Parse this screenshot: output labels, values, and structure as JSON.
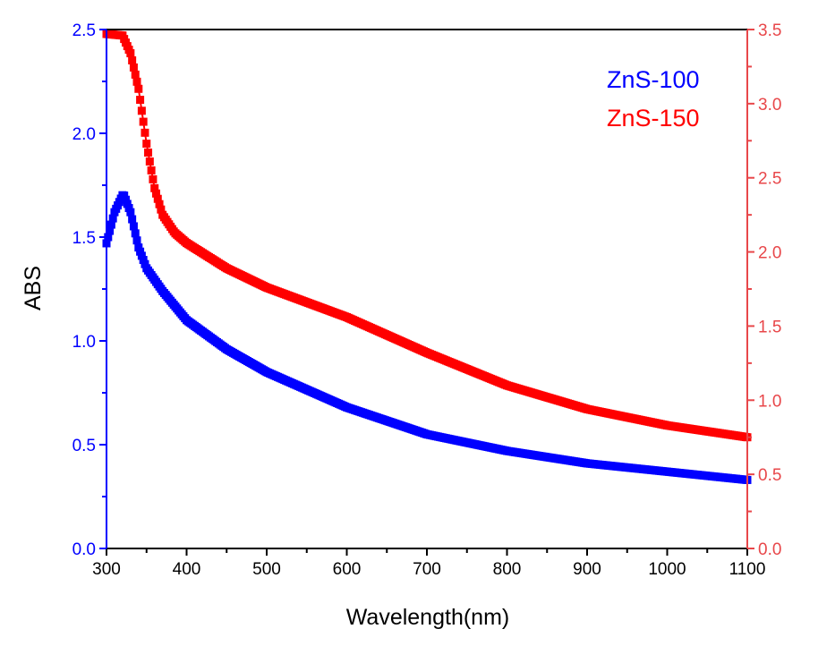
{
  "chart_data": {
    "type": "scatter",
    "xlabel": "Wavelength(nm)",
    "ylabel": "ABS",
    "xlim": [
      300,
      1100
    ],
    "ylim_left": [
      0,
      2.5
    ],
    "ylim_right": [
      0,
      3.5
    ],
    "x_ticks": [
      "300",
      "400",
      "500",
      "600",
      "700",
      "800",
      "900",
      "1000",
      "1100"
    ],
    "y_left_ticks": [
      "0.0",
      "0.5",
      "1.0",
      "1.5",
      "2.0",
      "2.5"
    ],
    "y_right_ticks": [
      "0.0",
      "0.5",
      "1.0",
      "1.5",
      "2.0",
      "2.5",
      "3.0",
      "3.5"
    ],
    "grid": false,
    "legend_placement": "top-right",
    "colors": {
      "left_axis": "#0000ff",
      "right_axis": "#e8474a",
      "bottom_axis": "#000000"
    },
    "series": [
      {
        "name": "ZnS-100",
        "axis": "left",
        "color": "#0000ff",
        "x": [
          300,
          310,
          321,
          330,
          340,
          350,
          370,
          400,
          450,
          500,
          600,
          700,
          800,
          900,
          1000,
          1100
        ],
        "y": [
          1.47,
          1.62,
          1.71,
          1.62,
          1.45,
          1.35,
          1.24,
          1.1,
          0.96,
          0.85,
          0.68,
          0.55,
          0.47,
          0.41,
          0.37,
          0.33
        ]
      },
      {
        "name": "ZnS-150",
        "axis": "right",
        "color": "#ff0000",
        "x": [
          300,
          320,
          330,
          340,
          350,
          360,
          370,
          385,
          400,
          450,
          500,
          600,
          700,
          800,
          900,
          1000,
          1100
        ],
        "y": [
          3.47,
          3.46,
          3.34,
          3.1,
          2.73,
          2.43,
          2.25,
          2.13,
          2.06,
          1.89,
          1.76,
          1.56,
          1.32,
          1.1,
          0.94,
          0.83,
          0.75
        ]
      }
    ]
  }
}
